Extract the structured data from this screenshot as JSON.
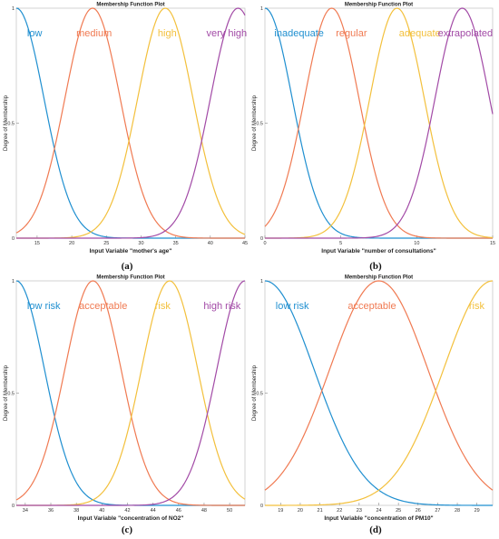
{
  "chart_data": [
    {
      "type": "line",
      "panel": "(a)",
      "title": "Membership Function Plot",
      "xlabel": "Input Variable  \"mother's age\"",
      "ylabel": "Degree of Membership",
      "xlim": [
        12,
        45
      ],
      "ylim": [
        0,
        1
      ],
      "xticks": [
        "15",
        "20",
        "25",
        "30",
        "35",
        "40",
        "45"
      ],
      "yticks": [
        "0",
        "0.5",
        "1"
      ],
      "series": [
        {
          "name": "low",
          "color": "#1f8fd0",
          "shape": "gauss",
          "center": 12,
          "sigma": 4.0
        },
        {
          "name": "medium",
          "color": "#f07a52",
          "shape": "gauss",
          "center": 23,
          "sigma": 4.0
        },
        {
          "name": "high",
          "color": "#f3c03c",
          "shape": "gauss",
          "center": 33.5,
          "sigma": 4.0
        },
        {
          "name": "very high",
          "color": "#a24aa6",
          "shape": "gauss",
          "center": 44,
          "sigma": 4.0
        }
      ]
    },
    {
      "type": "line",
      "panel": "(b)",
      "title": "Membership Function Plot",
      "xlabel": "Input Variable  \"number of consultations\"",
      "ylabel": "Degree of Membership",
      "xlim": [
        0,
        15
      ],
      "ylim": [
        0,
        1
      ],
      "xticks": [
        "0",
        "5",
        "10",
        "15"
      ],
      "yticks": [
        "0",
        "0.5",
        "1"
      ],
      "series": [
        {
          "name": "inadequate",
          "color": "#1f8fd0",
          "shape": "gauss",
          "center": 0,
          "sigma": 1.8
        },
        {
          "name": "regular",
          "color": "#f07a52",
          "shape": "gauss",
          "center": 4.4,
          "sigma": 1.8
        },
        {
          "name": "adequate",
          "color": "#f3c03c",
          "shape": "gauss",
          "center": 8.7,
          "sigma": 1.8
        },
        {
          "name": "extrapolated",
          "color": "#a24aa6",
          "shape": "gauss",
          "center": 13,
          "sigma": 1.8
        }
      ]
    },
    {
      "type": "line",
      "panel": "(c)",
      "title": "Membership Function Plot",
      "xlabel": "Input Variable  \"concentration of NO2\"",
      "ylabel": "Degree of Membership",
      "xlim": [
        33.3,
        51.2
      ],
      "ylim": [
        0,
        1
      ],
      "xticks": [
        "34",
        "36",
        "38",
        "40",
        "42",
        "44",
        "46",
        "48",
        "50"
      ],
      "yticks": [
        "0",
        "0.5",
        "1"
      ],
      "series": [
        {
          "name": "low risk",
          "color": "#1f8fd0",
          "shape": "gauss",
          "center": 33.3,
          "sigma": 2.2
        },
        {
          "name": "acceptable",
          "color": "#f07a52",
          "shape": "gauss",
          "center": 39.3,
          "sigma": 2.2
        },
        {
          "name": "risk",
          "color": "#f3c03c",
          "shape": "gauss",
          "center": 45.3,
          "sigma": 2.2
        },
        {
          "name": "high risk",
          "color": "#a24aa6",
          "shape": "gauss",
          "center": 51.2,
          "sigma": 2.2
        }
      ]
    },
    {
      "type": "line",
      "panel": "(d)",
      "title": "Membership Function Plot",
      "xlabel": "Input Variable  \"concentration of PM10\"",
      "ylabel": "Degree of Membership",
      "xlim": [
        18.2,
        29.8
      ],
      "ylim": [
        0,
        1
      ],
      "xticks": [
        "19",
        "20",
        "21",
        "22",
        "23",
        "24",
        "25",
        "26",
        "27",
        "28",
        "29"
      ],
      "yticks": [
        "0",
        "0.5",
        "1"
      ],
      "series": [
        {
          "name": "low risk",
          "color": "#1f8fd0",
          "shape": "gauss",
          "center": 18.2,
          "sigma": 2.5
        },
        {
          "name": "acceptable",
          "color": "#f07a52",
          "shape": "gauss",
          "center": 24.0,
          "sigma": 2.5
        },
        {
          "name": "risk",
          "color": "#f3c03c",
          "shape": "gauss",
          "center": 29.8,
          "sigma": 2.5
        }
      ]
    }
  ]
}
